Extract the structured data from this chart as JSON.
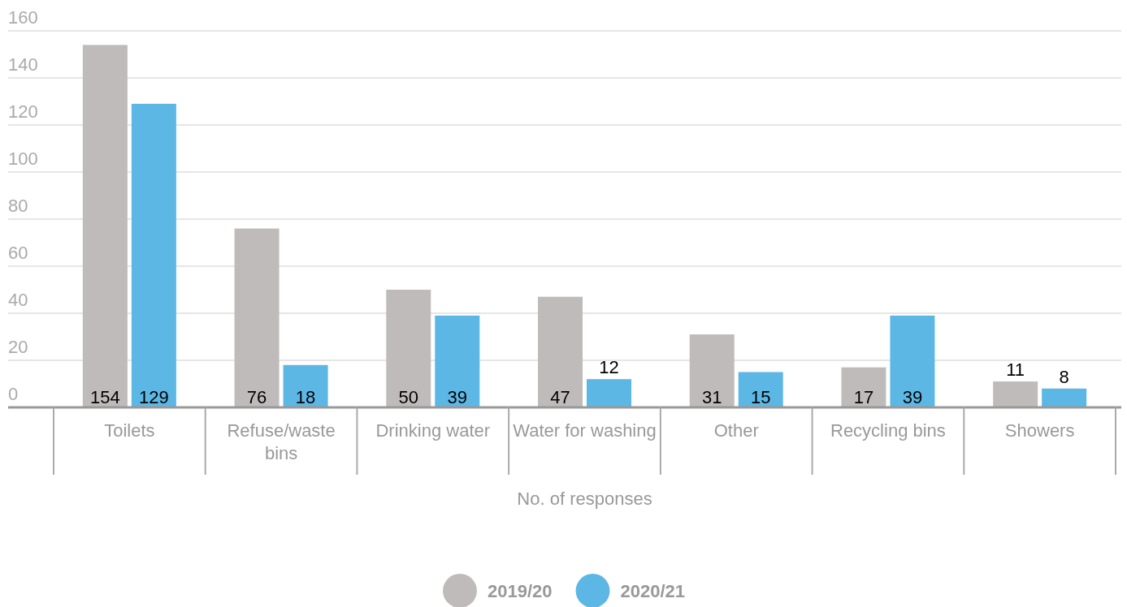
{
  "chart_data": {
    "type": "bar",
    "xlabel": "No. of responses",
    "categories": [
      "Toilets",
      "Refuse/waste bins",
      "Drinking water",
      "Water for washing",
      "Other",
      "Recycling bins",
      "Showers"
    ],
    "series": [
      {
        "name": "2019/20",
        "color": "#bfbbba",
        "values": [
          154,
          76,
          50,
          47,
          31,
          17,
          11
        ]
      },
      {
        "name": "2020/21",
        "color": "#5db7e5",
        "values": [
          129,
          18,
          39,
          12,
          15,
          39,
          8
        ]
      }
    ],
    "ylim": [
      0,
      160
    ],
    "yticks": [
      0,
      20,
      40,
      60,
      80,
      100,
      120,
      140,
      160
    ],
    "grid": "y",
    "legend": "bottom",
    "data_labels": true
  }
}
